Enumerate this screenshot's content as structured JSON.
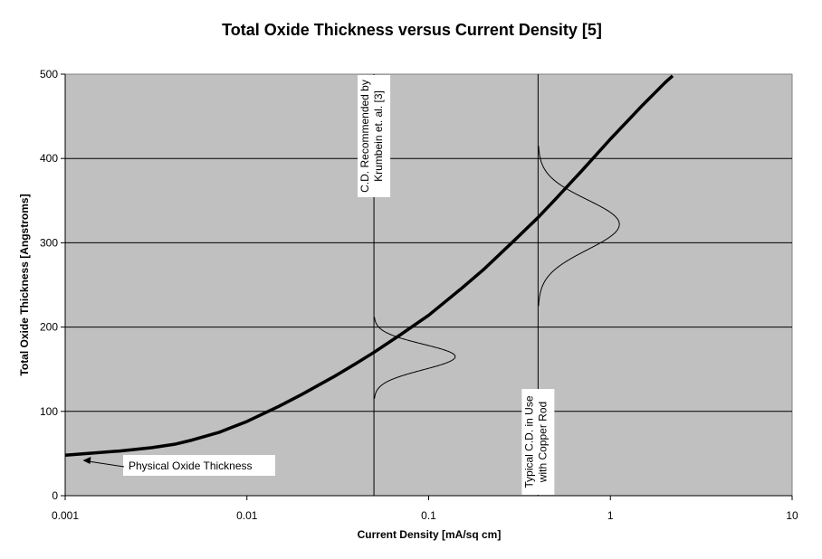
{
  "chart_data": {
    "type": "line",
    "title": "Total Oxide Thickness versus Current Density [5]",
    "xlabel": "Current Density [mA/sq cm]",
    "ylabel": "Total Oxide Thickness [Angstroms]",
    "x_scale": "log",
    "xlim": [
      0.001,
      10
    ],
    "ylim": [
      0,
      500
    ],
    "grid": true,
    "x_ticks": [
      {
        "value": 0.001,
        "label": "0.001"
      },
      {
        "value": 0.01,
        "label": "0.01"
      },
      {
        "value": 0.1,
        "label": "0.1"
      },
      {
        "value": 1,
        "label": "1"
      },
      {
        "value": 10,
        "label": "10"
      }
    ],
    "y_ticks": [
      {
        "value": 0,
        "label": "0"
      },
      {
        "value": 100,
        "label": "100"
      },
      {
        "value": 200,
        "label": "200"
      },
      {
        "value": 300,
        "label": "300"
      },
      {
        "value": 400,
        "label": "400"
      },
      {
        "value": 500,
        "label": "500"
      }
    ],
    "series": [
      {
        "x": [
          0.001,
          0.0015,
          0.002,
          0.003,
          0.004,
          0.005,
          0.007,
          0.01,
          0.015,
          0.02,
          0.03,
          0.04,
          0.05,
          0.07,
          0.1,
          0.15,
          0.2,
          0.3,
          0.4,
          0.5,
          0.7,
          1,
          1.5,
          2,
          2.2
        ],
        "y": [
          48,
          51,
          53,
          57,
          61,
          66,
          75,
          88,
          106,
          120,
          141,
          157,
          170,
          191,
          214,
          245,
          268,
          304,
          330,
          352,
          386,
          423,
          463,
          490,
          498
        ]
      }
    ],
    "distributions": [
      {
        "center_x": 0.05,
        "y_min": 115,
        "y_peak": 165,
        "y_max": 212,
        "peak_x": 0.14
      },
      {
        "center_x": 0.4,
        "y_min": 225,
        "y_peak": 322,
        "y_max": 415,
        "peak_x": 1.12
      }
    ],
    "reference_lines": [
      {
        "x": 0.05,
        "label_lines": [
          "C.D. Recommended by",
          "Krumbein et. al. [3]"
        ],
        "label_position": "top"
      },
      {
        "x": 0.4,
        "label_lines": [
          "Typical C.D. in Use",
          "with Copper Rod"
        ],
        "label_position": "bottom"
      }
    ],
    "annotations": [
      {
        "text": "Physical Oxide Thickness",
        "arrow_to_x": 0.00125,
        "arrow_to_y": 40
      }
    ],
    "colors": {
      "plot_background": "#c0c0c0",
      "line": "#000000",
      "grid": "#000000"
    }
  }
}
